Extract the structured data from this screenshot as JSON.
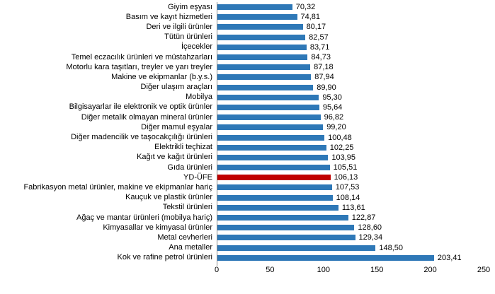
{
  "chart_data": {
    "type": "bar",
    "orientation": "horizontal",
    "title": "",
    "xlabel": "",
    "ylabel": "",
    "xlim": [
      0,
      250
    ],
    "x_ticks": [
      "0",
      "50",
      "100",
      "150",
      "200",
      "250"
    ],
    "grid": false,
    "legend": "none",
    "bar_color": "#2e78b7",
    "highlight_color": "#c00000",
    "highlight_category": "YD-ÜFE",
    "highlight_index": 17,
    "categories": [
      "Giyim eşyası",
      "Basım ve kayıt hizmetleri",
      "Deri ve ilgili ürünler",
      "Tütün ürünleri",
      "İçecekler",
      "Temel eczacılık ürünleri ve müstahzarları",
      "Motorlu kara taşıtları, treyler ve yarı treyler",
      "Makine ve ekipmanlar (b.y.s.)",
      "Diğer ulaşım araçları",
      "Mobilya",
      "Bilgisayarlar ile elektronik ve optik ürünler",
      "Diğer metalik olmayan mineral ürünler",
      "Diğer mamul eşyalar",
      "Diğer madencilik ve taşocakçılığı ürünleri",
      "Elektrikli teçhizat",
      "Kağıt ve kağıt ürünleri",
      "Gıda ürünleri",
      "YD-ÜFE",
      "Fabrikasyon metal ürünler, makine ve ekipmanlar hariç",
      "Kauçuk ve plastik ürünler",
      "Tekstil ürünleri",
      "Ağaç ve mantar ürünleri (mobilya hariç)",
      "Kimyasallar ve kimyasal ürünler",
      "Metal cevherleri",
      "Ana metaller",
      "Kok ve rafine petrol ürünleri"
    ],
    "values": [
      70.32,
      74.81,
      80.17,
      82.57,
      83.71,
      84.73,
      87.18,
      87.94,
      89.9,
      95.3,
      95.64,
      96.82,
      99.2,
      100.48,
      102.25,
      103.95,
      105.51,
      106.13,
      107.53,
      108.14,
      113.61,
      122.87,
      128.6,
      129.34,
      148.5,
      203.41
    ],
    "value_labels": [
      "70,32",
      "74,81",
      "80,17",
      "82,57",
      "83,71",
      "84,73",
      "87,18",
      "87,94",
      "89,90",
      "95,30",
      "95,64",
      "96,82",
      "99,20",
      "100,48",
      "102,25",
      "103,95",
      "105,51",
      "106,13",
      "107,53",
      "108,14",
      "113,61",
      "122,87",
      "128,60",
      "129,34",
      "148,50",
      "203,41"
    ]
  }
}
